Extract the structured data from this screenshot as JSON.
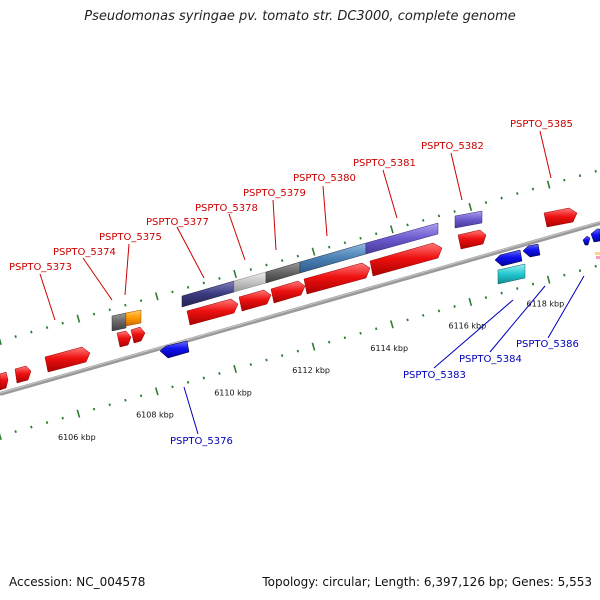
{
  "title": "Pseudomonas syringae pv. tomato str. DC3000, complete genome",
  "footer": {
    "accession_label": "Accession: NC_004578",
    "topology_label": "Topology: circular; Length: 6,397,126 bp; Genes: 5,553"
  },
  "colors": {
    "forward_label": "#cc0000",
    "reverse_label": "#0000bb",
    "backbone": "#808080",
    "ruler_tick": "#2e7d32"
  },
  "ruler_labels": [
    {
      "text": "6106 kbp",
      "kbp": 6106
    },
    {
      "text": "6108 kbp",
      "kbp": 6108
    },
    {
      "text": "6110 kbp",
      "kbp": 6110
    },
    {
      "text": "6112 kbp",
      "kbp": 6112
    },
    {
      "text": "6114 kbp",
      "kbp": 6114
    },
    {
      "text": "6116 kbp",
      "kbp": 6116
    },
    {
      "text": "6118 kbp",
      "kbp": 6118
    }
  ],
  "genes_forward": [
    {
      "label": "PSPTO_5373"
    },
    {
      "label": "PSPTO_5374"
    },
    {
      "label": "PSPTO_5375"
    },
    {
      "label": "PSPTO_5377"
    },
    {
      "label": "PSPTO_5378"
    },
    {
      "label": "PSPTO_5379"
    },
    {
      "label": "PSPTO_5380"
    },
    {
      "label": "PSPTO_5381"
    },
    {
      "label": "PSPTO_5382"
    },
    {
      "label": "PSPTO_5385"
    }
  ],
  "genes_reverse": [
    {
      "label": "PSPTO_5376"
    },
    {
      "label": "PSPTO_5383"
    },
    {
      "label": "PSPTO_5384"
    },
    {
      "label": "PSPTO_5386"
    }
  ]
}
